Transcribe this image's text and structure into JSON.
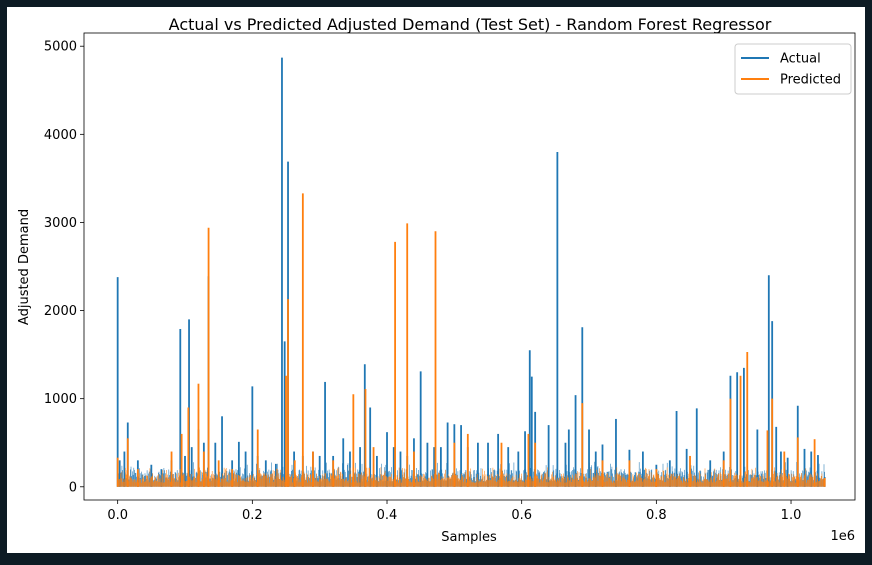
{
  "chart_data": {
    "type": "line",
    "title": "Actual vs Predicted Adjusted Demand (Test Set) - Random Forest Regressor",
    "xlabel": "Samples",
    "ylabel": "Adjusted Demand",
    "x_offset_text": "1e6",
    "xlim": [
      -0.05,
      1.095
    ],
    "ylim": [
      -150,
      5150
    ],
    "x_ticks": [
      0.0,
      0.2,
      0.4,
      0.6,
      0.8,
      1.0
    ],
    "x_tick_labels": [
      "0.0",
      "0.2",
      "0.4",
      "0.6",
      "0.8",
      "1.0"
    ],
    "y_ticks": [
      0,
      1000,
      2000,
      3000,
      4000,
      5000
    ],
    "y_tick_labels": [
      "0",
      "1000",
      "2000",
      "3000",
      "4000",
      "5000"
    ],
    "x_range": [
      0.0,
      1.05
    ],
    "grid": false,
    "legend_position": "top-right",
    "series": [
      {
        "name": "Actual",
        "color": "#1f77b4",
        "x": [
          0.0,
          0.003,
          0.01,
          0.015,
          0.03,
          0.05,
          0.065,
          0.08,
          0.093,
          0.1,
          0.106,
          0.11,
          0.12,
          0.128,
          0.135,
          0.145,
          0.155,
          0.17,
          0.18,
          0.19,
          0.2,
          0.208,
          0.22,
          0.235,
          0.244,
          0.248,
          0.253,
          0.262,
          0.275,
          0.29,
          0.3,
          0.308,
          0.32,
          0.335,
          0.345,
          0.36,
          0.367,
          0.375,
          0.385,
          0.4,
          0.41,
          0.42,
          0.43,
          0.44,
          0.45,
          0.46,
          0.47,
          0.48,
          0.49,
          0.5,
          0.51,
          0.52,
          0.535,
          0.55,
          0.565,
          0.58,
          0.595,
          0.605,
          0.612,
          0.615,
          0.62,
          0.64,
          0.653,
          0.665,
          0.67,
          0.68,
          0.69,
          0.7,
          0.71,
          0.72,
          0.74,
          0.76,
          0.78,
          0.8,
          0.82,
          0.83,
          0.845,
          0.86,
          0.88,
          0.9,
          0.91,
          0.92,
          0.93,
          0.95,
          0.967,
          0.972,
          0.978,
          0.985,
          0.995,
          1.01,
          1.02,
          1.03,
          1.04,
          1.05
        ],
        "y": [
          2380,
          300,
          400,
          730,
          300,
          250,
          200,
          300,
          1790,
          350,
          1900,
          450,
          650,
          500,
          2390,
          500,
          800,
          300,
          510,
          400,
          1140,
          350,
          300,
          260,
          4870,
          1650,
          3690,
          400,
          350,
          400,
          350,
          1190,
          350,
          550,
          400,
          450,
          1390,
          900,
          350,
          620,
          450,
          400,
          350,
          550,
          1310,
          500,
          450,
          450,
          730,
          710,
          700,
          450,
          500,
          500,
          600,
          450,
          400,
          630,
          1550,
          1250,
          850,
          700,
          3800,
          500,
          650,
          1040,
          1810,
          650,
          400,
          480,
          770,
          420,
          400,
          250,
          300,
          860,
          430,
          890,
          300,
          400,
          1260,
          1300,
          1350,
          650,
          2400,
          1880,
          680,
          400,
          330,
          920,
          430,
          400,
          360,
          110
        ]
      },
      {
        "name": "Predicted",
        "color": "#ff7f0e",
        "x": [
          0.0,
          0.015,
          0.03,
          0.08,
          0.095,
          0.105,
          0.12,
          0.128,
          0.135,
          0.15,
          0.17,
          0.208,
          0.25,
          0.253,
          0.263,
          0.275,
          0.29,
          0.32,
          0.35,
          0.368,
          0.38,
          0.412,
          0.43,
          0.44,
          0.472,
          0.5,
          0.52,
          0.57,
          0.61,
          0.62,
          0.69,
          0.72,
          0.76,
          0.8,
          0.85,
          0.9,
          0.91,
          0.925,
          0.935,
          0.965,
          0.972,
          0.99,
          1.01,
          1.035,
          1.05
        ],
        "y": [
          330,
          550,
          200,
          400,
          600,
          900,
          1170,
          400,
          2940,
          300,
          200,
          650,
          1260,
          2130,
          300,
          3330,
          400,
          300,
          1050,
          1110,
          450,
          2780,
          2990,
          400,
          2900,
          500,
          600,
          500,
          600,
          500,
          950,
          300,
          300,
          200,
          350,
          300,
          1000,
          1260,
          1530,
          640,
          1000,
          400,
          560,
          540,
          100
        ]
      }
    ]
  }
}
